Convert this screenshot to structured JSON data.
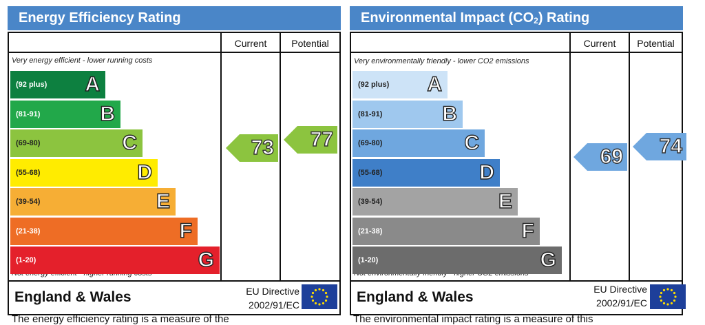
{
  "energy": {
    "title": "Energy Efficiency Rating",
    "col_current": "Current",
    "col_potential": "Potential",
    "top_note": "Very energy efficient - lower running costs",
    "bottom_note": "Not energy efficient - higher running costs",
    "bands": [
      {
        "range": "(92 plus)",
        "letter": "A",
        "color": "#0d8040"
      },
      {
        "range": "(81-91)",
        "letter": "B",
        "color": "#22a84a"
      },
      {
        "range": "(69-80)",
        "letter": "C",
        "color": "#8cc43f"
      },
      {
        "range": "(55-68)",
        "letter": "D",
        "color": "#ffec00"
      },
      {
        "range": "(39-54)",
        "letter": "E",
        "color": "#f6ae35"
      },
      {
        "range": "(21-38)",
        "letter": "F",
        "color": "#ee6d25"
      },
      {
        "range": "(1-20)",
        "letter": "G",
        "color": "#e4202b"
      }
    ],
    "current": {
      "value": "73",
      "color": "#8cc43f"
    },
    "potential": {
      "value": "77",
      "color": "#8cc43f"
    },
    "country": "England & Wales",
    "directive_line1": "EU Directive",
    "directive_line2": "2002/91/EC"
  },
  "environment": {
    "title": "Environmental Impact (CO",
    "title_sub": "2",
    "title_end": ") Rating",
    "col_current": "Current",
    "col_potential": "Potential",
    "top_note": "Very environmentally friendly - lower CO2 emissions",
    "bottom_note": "Not environmentally friendly - higher CO2 emissions",
    "bands": [
      {
        "range": "(92 plus)",
        "letter": "A",
        "color": "#cde3f7"
      },
      {
        "range": "(81-91)",
        "letter": "B",
        "color": "#9fc8ee"
      },
      {
        "range": "(69-80)",
        "letter": "C",
        "color": "#6fa7df"
      },
      {
        "range": "(55-68)",
        "letter": "D",
        "color": "#3f7fc8"
      },
      {
        "range": "(39-54)",
        "letter": "E",
        "color": "#a3a3a3"
      },
      {
        "range": "(21-38)",
        "letter": "F",
        "color": "#8a8a8a"
      },
      {
        "range": "(1-20)",
        "letter": "G",
        "color": "#6c6c6c"
      }
    ],
    "current": {
      "value": "69",
      "color": "#6fa7df"
    },
    "potential": {
      "value": "74",
      "color": "#6fa7df"
    },
    "country": "England & Wales",
    "directive_line1": "EU Directive",
    "directive_line2": "2002/91/EC"
  },
  "captions": {
    "left": "The energy efficiency rating is a measure of the",
    "right": "The environmental impact rating is a measure of this"
  }
}
